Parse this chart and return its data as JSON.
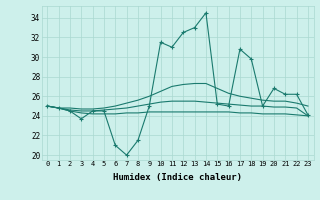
{
  "x": [
    0,
    1,
    2,
    3,
    4,
    5,
    6,
    7,
    8,
    9,
    10,
    11,
    12,
    13,
    14,
    15,
    16,
    17,
    18,
    19,
    20,
    21,
    22,
    23
  ],
  "series1": [
    25.0,
    24.8,
    24.5,
    23.7,
    24.5,
    24.5,
    21.0,
    20.0,
    21.5,
    25.0,
    31.5,
    31.0,
    32.5,
    33.0,
    34.5,
    25.2,
    25.0,
    30.8,
    29.8,
    25.0,
    26.8,
    26.2,
    26.2,
    24.1
  ],
  "series2": [
    25.0,
    24.8,
    24.6,
    24.5,
    24.5,
    24.6,
    24.7,
    24.8,
    25.0,
    25.2,
    25.4,
    25.5,
    25.5,
    25.5,
    25.4,
    25.3,
    25.2,
    25.1,
    25.0,
    25.0,
    24.9,
    24.9,
    24.8,
    24.0
  ],
  "series3": [
    25.0,
    24.8,
    24.5,
    24.3,
    24.2,
    24.2,
    24.2,
    24.3,
    24.3,
    24.4,
    24.4,
    24.4,
    24.4,
    24.4,
    24.4,
    24.4,
    24.4,
    24.3,
    24.3,
    24.2,
    24.2,
    24.2,
    24.1,
    24.0
  ],
  "series4": [
    25.0,
    24.8,
    24.8,
    24.7,
    24.7,
    24.8,
    25.0,
    25.3,
    25.6,
    26.0,
    26.5,
    27.0,
    27.2,
    27.3,
    27.3,
    26.8,
    26.3,
    26.0,
    25.8,
    25.6,
    25.5,
    25.5,
    25.3,
    25.0
  ],
  "xlabel": "Humidex (Indice chaleur)",
  "ylim": [
    19.5,
    35.2
  ],
  "xlim": [
    -0.5,
    23.5
  ],
  "yticks": [
    20,
    22,
    24,
    26,
    28,
    30,
    32,
    34
  ],
  "xticks": [
    0,
    1,
    2,
    3,
    4,
    5,
    6,
    7,
    8,
    9,
    10,
    11,
    12,
    13,
    14,
    15,
    16,
    17,
    18,
    19,
    20,
    21,
    22,
    23
  ],
  "color": "#1a7a6e",
  "bg_color": "#cdf0eb",
  "grid_color": "#aad8d0"
}
